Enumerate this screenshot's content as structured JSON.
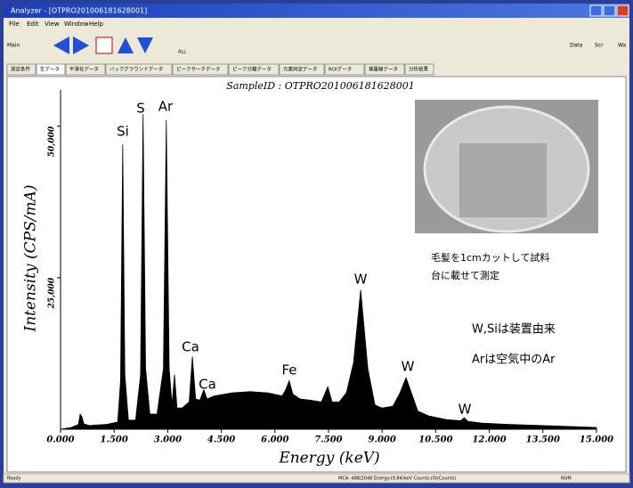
{
  "window": {
    "title": "Analyzer - [OTPRO201006181628001]"
  },
  "menu": [
    "File",
    "Edit",
    "View",
    "Window",
    "Help"
  ],
  "toolbar": {
    "left": [
      "Main",
      "ALL"
    ],
    "right": [
      "Data",
      "Scr",
      "Wa"
    ]
  },
  "tabs": [
    "測定条件",
    "生データ",
    "平滑化データ",
    "バックグラウンドデータ",
    "ピークサーチデータ",
    "ピーク分離データ",
    "元素同定データ",
    "ROIデータ",
    "検量線データ",
    "分析結果"
  ],
  "chart_data": {
    "type": "area",
    "title": "SampleID : OTPRO201006181628001",
    "x_label": "Energy  (keV)",
    "y_label": "Intensity  (CPS/mA)",
    "color": "#000000",
    "x": [
      0,
      0.3,
      0.5,
      0.55,
      0.6,
      0.65,
      0.8,
      1.0,
      1.3,
      1.6,
      1.68,
      1.74,
      1.8,
      1.9,
      2.1,
      2.24,
      2.31,
      2.38,
      2.5,
      2.7,
      2.88,
      2.96,
      3.04,
      3.12,
      3.19,
      3.26,
      3.4,
      3.6,
      3.69,
      3.78,
      3.9,
      4.01,
      4.1,
      4.3,
      4.8,
      5.3,
      5.8,
      6.2,
      6.3,
      6.4,
      6.5,
      6.7,
      7.0,
      7.3,
      7.48,
      7.6,
      7.8,
      8.0,
      8.2,
      8.4,
      8.6,
      8.8,
      9.0,
      9.3,
      9.5,
      9.67,
      9.85,
      10.0,
      10.3,
      10.8,
      11.2,
      11.3,
      11.4,
      11.8,
      12.5,
      13.5,
      14.5,
      15.0
    ],
    "values": [
      0,
      300,
      800,
      2500,
      2000,
      900,
      600,
      700,
      800,
      1200,
      8000,
      47000,
      9000,
      1500,
      1500,
      9000,
      52000,
      10000,
      2500,
      2500,
      10000,
      51000,
      10000,
      4000,
      9000,
      3500,
      3500,
      4500,
      12000,
      5000,
      4800,
      6500,
      5000,
      5500,
      6000,
      6200,
      6000,
      5500,
      6500,
      8000,
      5800,
      5000,
      4800,
      4500,
      7000,
      4500,
      4500,
      6000,
      11000,
      23000,
      10000,
      4000,
      3500,
      3800,
      6000,
      8500,
      5500,
      3000,
      2200,
      1600,
      1400,
      1900,
      1300,
      1000,
      800,
      600,
      400,
      300
    ],
    "xlim": [
      0,
      15
    ],
    "ylim": [
      0,
      56000
    ],
    "xticks": [
      {
        "value": 0,
        "label": "0.000"
      },
      {
        "value": 1.5,
        "label": "1.500"
      },
      {
        "value": 3,
        "label": "3.000"
      },
      {
        "value": 4.5,
        "label": "4.500"
      },
      {
        "value": 6,
        "label": "6.000"
      },
      {
        "value": 7.5,
        "label": "7.500"
      },
      {
        "value": 9,
        "label": "9.000"
      },
      {
        "value": 10.5,
        "label": "10.500"
      },
      {
        "value": 12,
        "label": "12.000"
      },
      {
        "value": 13.5,
        "label": "13.500"
      },
      {
        "value": 15,
        "label": "15.000"
      }
    ],
    "yticks": [
      {
        "value": 25000,
        "label": "25,000"
      },
      {
        "value": 50000,
        "label": "50,000"
      }
    ],
    "peak_labels": [
      "Si",
      "S",
      "Ar",
      "Ca",
      "Ca",
      "Fe",
      "W",
      "W",
      "W"
    ],
    "notes": [
      "毛髪を1cmカットして試料",
      "台に載せて測定",
      "W,Siは装置由来",
      "Arは空気中のAr"
    ]
  },
  "status": [
    "Ready",
    "MCA: 488/2048  Energy:(9.84)keV  Counts:(0)(Counts)",
    "NUM"
  ]
}
